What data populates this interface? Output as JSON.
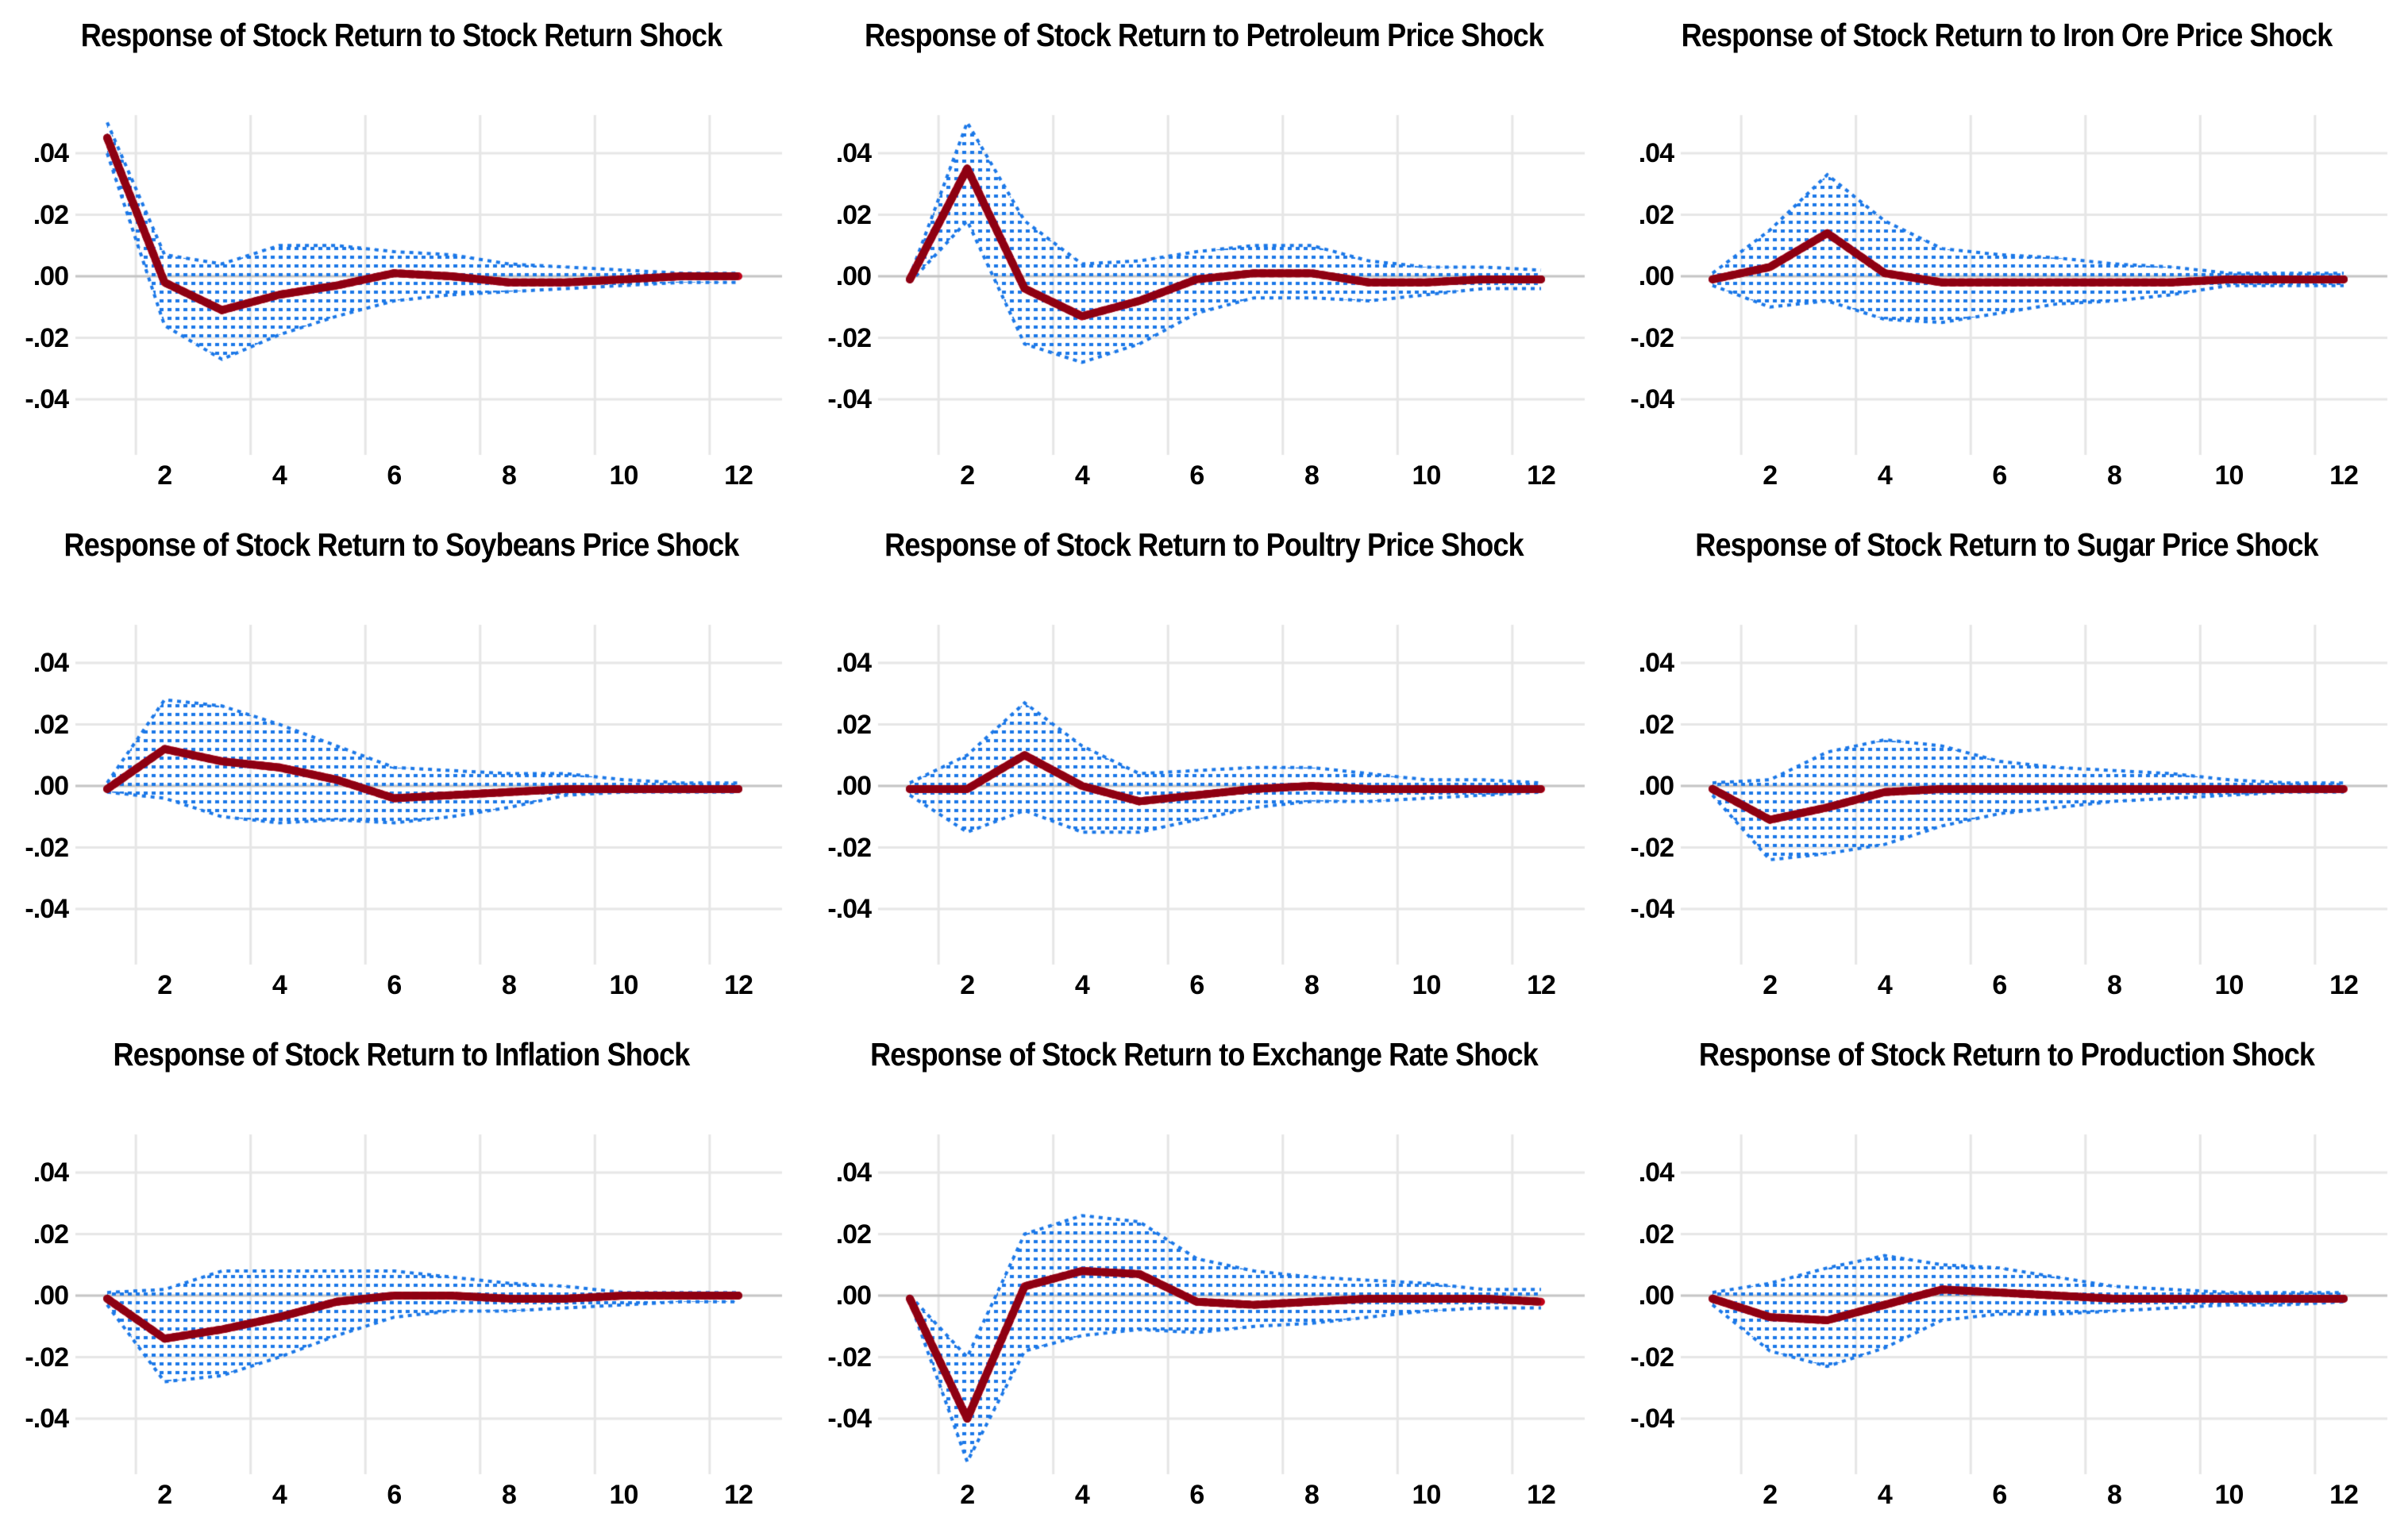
{
  "figure": {
    "kind": "impulse-response-grid",
    "rows": 3,
    "cols": 3
  },
  "style": {
    "background": "#ffffff",
    "response_color": "#c00018",
    "response_dark_color": "#8e0012",
    "band_color": "#1b78e8",
    "gridline_color": "#e6e6e6",
    "zero_line_color": "#c4c4c4",
    "text_color": "#000000"
  },
  "axes": {
    "x_tick_labels": [
      "2",
      "4",
      "6",
      "8",
      "10",
      "12"
    ],
    "x_tick_values": [
      2,
      4,
      6,
      8,
      10,
      12
    ],
    "y_tick_labels": [
      ".04",
      ".02",
      ".00",
      "-.02",
      "-.04"
    ],
    "y_tick_values": [
      0.04,
      0.02,
      0.0,
      -0.02,
      -0.04
    ],
    "x_range": [
      1,
      12
    ],
    "ylim": [
      -0.058,
      0.055
    ],
    "grid": true,
    "legend": "none"
  },
  "chart_data": [
    {
      "type": "line",
      "title": "Response of Stock Return to Stock Return Shock",
      "xlabel": "",
      "ylabel": "",
      "x": [
        1,
        2,
        3,
        4,
        5,
        6,
        7,
        8,
        9,
        10,
        11,
        12
      ],
      "series": [
        {
          "name": "response",
          "values": [
            0.045,
            -0.002,
            -0.011,
            -0.006,
            -0.003,
            0.001,
            0.0,
            -0.002,
            -0.002,
            -0.001,
            0.0,
            0.0
          ]
        },
        {
          "name": "upper_band",
          "values": [
            0.05,
            0.007,
            0.004,
            0.01,
            0.01,
            0.008,
            0.007,
            0.004,
            0.003,
            0.002,
            0.001,
            0.001
          ]
        },
        {
          "name": "lower_band",
          "values": [
            0.04,
            -0.016,
            -0.027,
            -0.019,
            -0.013,
            -0.008,
            -0.006,
            -0.005,
            -0.004,
            -0.003,
            -0.002,
            -0.002
          ]
        }
      ]
    },
    {
      "type": "line",
      "title": "Response of Stock Return to Petroleum Price Shock",
      "xlabel": "",
      "ylabel": "",
      "x": [
        1,
        2,
        3,
        4,
        5,
        6,
        7,
        8,
        9,
        10,
        11,
        12
      ],
      "series": [
        {
          "name": "response",
          "values": [
            -0.001,
            0.035,
            -0.004,
            -0.013,
            -0.008,
            -0.001,
            0.001,
            0.001,
            -0.002,
            -0.002,
            -0.001,
            -0.001
          ]
        },
        {
          "name": "upper_band",
          "values": [
            0.0,
            0.05,
            0.018,
            0.004,
            0.005,
            0.008,
            0.01,
            0.01,
            0.005,
            0.003,
            0.003,
            0.002
          ]
        },
        {
          "name": "lower_band",
          "values": [
            -0.002,
            0.018,
            -0.022,
            -0.028,
            -0.022,
            -0.012,
            -0.007,
            -0.007,
            -0.008,
            -0.006,
            -0.004,
            -0.004
          ]
        }
      ]
    },
    {
      "type": "line",
      "title": "Response of Stock Return to Iron Ore Price Shock",
      "xlabel": "",
      "ylabel": "",
      "x": [
        1,
        2,
        3,
        4,
        5,
        6,
        7,
        8,
        9,
        10,
        11,
        12
      ],
      "series": [
        {
          "name": "response",
          "values": [
            -0.001,
            0.003,
            0.014,
            0.001,
            -0.002,
            -0.002,
            -0.002,
            -0.002,
            -0.002,
            -0.001,
            -0.001,
            -0.001
          ]
        },
        {
          "name": "upper_band",
          "values": [
            0.001,
            0.015,
            0.033,
            0.018,
            0.009,
            0.007,
            0.006,
            0.004,
            0.003,
            0.001,
            0.001,
            0.001
          ]
        },
        {
          "name": "lower_band",
          "values": [
            -0.003,
            -0.01,
            -0.008,
            -0.014,
            -0.015,
            -0.012,
            -0.009,
            -0.008,
            -0.006,
            -0.003,
            -0.003,
            -0.003
          ]
        }
      ]
    },
    {
      "type": "line",
      "title": "Response of Stock Return to Soybeans Price Shock",
      "xlabel": "",
      "ylabel": "",
      "x": [
        1,
        2,
        3,
        4,
        5,
        6,
        7,
        8,
        9,
        10,
        11,
        12
      ],
      "series": [
        {
          "name": "response",
          "values": [
            -0.001,
            0.012,
            0.008,
            0.006,
            0.002,
            -0.004,
            -0.003,
            -0.002,
            -0.001,
            -0.001,
            -0.001,
            -0.001
          ]
        },
        {
          "name": "upper_band",
          "values": [
            0.001,
            0.028,
            0.026,
            0.02,
            0.013,
            0.006,
            0.005,
            0.004,
            0.004,
            0.002,
            0.001,
            0.001
          ]
        },
        {
          "name": "lower_band",
          "values": [
            -0.002,
            -0.004,
            -0.01,
            -0.012,
            -0.011,
            -0.012,
            -0.01,
            -0.007,
            -0.003,
            -0.002,
            -0.002,
            -0.002
          ]
        }
      ]
    },
    {
      "type": "line",
      "title": "Response of Stock Return to Poultry Price Shock",
      "xlabel": "",
      "ylabel": "",
      "x": [
        1,
        2,
        3,
        4,
        5,
        6,
        7,
        8,
        9,
        10,
        11,
        12
      ],
      "series": [
        {
          "name": "response",
          "values": [
            -0.001,
            -0.001,
            0.01,
            0.0,
            -0.005,
            -0.003,
            -0.001,
            0.0,
            -0.001,
            -0.001,
            -0.001,
            -0.001
          ]
        },
        {
          "name": "upper_band",
          "values": [
            0.001,
            0.01,
            0.027,
            0.013,
            0.004,
            0.005,
            0.006,
            0.006,
            0.004,
            0.002,
            0.002,
            0.001
          ]
        },
        {
          "name": "lower_band",
          "values": [
            -0.003,
            -0.015,
            -0.008,
            -0.015,
            -0.015,
            -0.011,
            -0.007,
            -0.005,
            -0.005,
            -0.004,
            -0.003,
            -0.002
          ]
        }
      ]
    },
    {
      "type": "line",
      "title": "Response of Stock Return to Sugar Price Shock",
      "xlabel": "",
      "ylabel": "",
      "x": [
        1,
        2,
        3,
        4,
        5,
        6,
        7,
        8,
        9,
        10,
        11,
        12
      ],
      "series": [
        {
          "name": "response",
          "values": [
            -0.001,
            -0.011,
            -0.007,
            -0.002,
            -0.001,
            -0.001,
            -0.001,
            -0.001,
            -0.001,
            -0.001,
            -0.001,
            -0.001
          ]
        },
        {
          "name": "upper_band",
          "values": [
            0.001,
            0.002,
            0.011,
            0.015,
            0.013,
            0.008,
            0.006,
            0.005,
            0.004,
            0.002,
            0.001,
            0.001
          ]
        },
        {
          "name": "lower_band",
          "values": [
            -0.003,
            -0.024,
            -0.022,
            -0.019,
            -0.013,
            -0.009,
            -0.007,
            -0.005,
            -0.004,
            -0.003,
            -0.002,
            -0.002
          ]
        }
      ]
    },
    {
      "type": "line",
      "title": "Response of Stock Return to Inflation Shock",
      "xlabel": "",
      "ylabel": "",
      "x": [
        1,
        2,
        3,
        4,
        5,
        6,
        7,
        8,
        9,
        10,
        11,
        12
      ],
      "series": [
        {
          "name": "response",
          "values": [
            -0.001,
            -0.014,
            -0.011,
            -0.007,
            -0.002,
            0.0,
            0.0,
            -0.001,
            -0.001,
            0.0,
            0.0,
            0.0
          ]
        },
        {
          "name": "upper_band",
          "values": [
            0.001,
            0.002,
            0.008,
            0.008,
            0.008,
            0.008,
            0.006,
            0.004,
            0.003,
            0.001,
            0.001,
            0.001
          ]
        },
        {
          "name": "lower_band",
          "values": [
            -0.003,
            -0.028,
            -0.026,
            -0.02,
            -0.013,
            -0.007,
            -0.005,
            -0.005,
            -0.004,
            -0.003,
            -0.002,
            -0.002
          ]
        }
      ]
    },
    {
      "type": "line",
      "title": "Response of Stock Return to Exchange Rate Shock",
      "xlabel": "",
      "ylabel": "",
      "x": [
        1,
        2,
        3,
        4,
        5,
        6,
        7,
        8,
        9,
        10,
        11,
        12
      ],
      "series": [
        {
          "name": "response",
          "values": [
            -0.001,
            -0.04,
            0.003,
            0.008,
            0.007,
            -0.002,
            -0.003,
            -0.002,
            -0.001,
            -0.001,
            -0.001,
            -0.002
          ]
        },
        {
          "name": "upper_band",
          "values": [
            0.0,
            -0.02,
            0.02,
            0.026,
            0.024,
            0.012,
            0.008,
            0.006,
            0.005,
            0.004,
            0.002,
            0.002
          ]
        },
        {
          "name": "lower_band",
          "values": [
            -0.002,
            -0.054,
            -0.018,
            -0.013,
            -0.011,
            -0.012,
            -0.01,
            -0.009,
            -0.007,
            -0.005,
            -0.004,
            -0.004
          ]
        }
      ]
    },
    {
      "type": "line",
      "title": "Response of Stock Return to Production Shock",
      "xlabel": "",
      "ylabel": "",
      "x": [
        1,
        2,
        3,
        4,
        5,
        6,
        7,
        8,
        9,
        10,
        11,
        12
      ],
      "series": [
        {
          "name": "response",
          "values": [
            -0.001,
            -0.007,
            -0.008,
            -0.003,
            0.002,
            0.001,
            0.0,
            -0.001,
            -0.001,
            -0.001,
            -0.001,
            -0.001
          ]
        },
        {
          "name": "upper_band",
          "values": [
            0.001,
            0.004,
            0.009,
            0.013,
            0.01,
            0.009,
            0.006,
            0.003,
            0.002,
            0.001,
            0.001,
            0.001
          ]
        },
        {
          "name": "lower_band",
          "values": [
            -0.003,
            -0.018,
            -0.023,
            -0.017,
            -0.008,
            -0.006,
            -0.006,
            -0.005,
            -0.004,
            -0.003,
            -0.003,
            -0.002
          ]
        }
      ]
    }
  ]
}
